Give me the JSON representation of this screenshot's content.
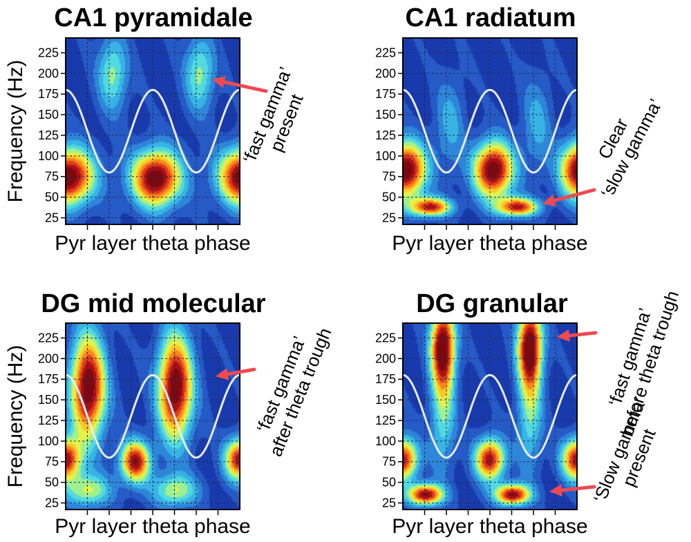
{
  "figure": {
    "y_axis_label": "Frequency (Hz)",
    "x_axis_label": "Pyr layer theta phase"
  },
  "colors": {
    "arrow": "#ee4a52",
    "theta_curve": "#e6ecf8",
    "grid": "#1e2a55",
    "frame": "#000000"
  },
  "colormap": [
    "#0d1f86",
    "#1b3fb3",
    "#2c68cf",
    "#31a3e0",
    "#43d6ee",
    "#9ff18f",
    "#f4f23a",
    "#ffb21e",
    "#f4521a",
    "#b4101a",
    "#7a0a10"
  ],
  "chart_data": [
    {
      "type": "heatmap",
      "panel": "top-left",
      "title": "CA1 pyramidale",
      "xlabel": "Pyr layer theta phase",
      "ylabel": "Frequency (Hz)",
      "ylim": [
        17,
        243
      ],
      "yticks": [
        25,
        50,
        75,
        100,
        125,
        150,
        175,
        200,
        225
      ],
      "theta_cycles": 2,
      "theta_curve_hz": [
        80,
        180
      ],
      "blobs": [
        {
          "phase": 0.02,
          "freq": 75,
          "sphase": 0.1,
          "sfreq": 24,
          "amp": 0.97
        },
        {
          "phase": 0.52,
          "freq": 73,
          "sphase": 0.1,
          "sfreq": 24,
          "amp": 0.97
        },
        {
          "phase": 1.02,
          "freq": 75,
          "sphase": 0.1,
          "sfreq": 24,
          "amp": 0.97
        },
        {
          "phase": 0.27,
          "freq": 200,
          "sphase": 0.06,
          "sfreq": 32,
          "amp": 0.4
        },
        {
          "phase": 0.77,
          "freq": 200,
          "sphase": 0.06,
          "sfreq": 32,
          "amp": 0.4
        }
      ],
      "annotations": [
        {
          "lines": [
            "‘fast gamma’",
            "present"
          ],
          "arrow_to_hz": 195
        }
      ]
    },
    {
      "type": "heatmap",
      "panel": "top-right",
      "title": "CA1 radiatum",
      "xlabel": "Pyr layer theta phase",
      "ylabel": "",
      "ylim": [
        17,
        243
      ],
      "yticks": [
        25,
        50,
        75,
        100,
        125,
        150,
        175,
        200,
        225
      ],
      "theta_cycles": 2,
      "theta_curve_hz": [
        80,
        180
      ],
      "blobs": [
        {
          "phase": 0.02,
          "freq": 83,
          "sphase": 0.08,
          "sfreq": 24,
          "amp": 0.97
        },
        {
          "phase": 0.52,
          "freq": 83,
          "sphase": 0.08,
          "sfreq": 24,
          "amp": 0.97
        },
        {
          "phase": 1.02,
          "freq": 83,
          "sphase": 0.08,
          "sfreq": 24,
          "amp": 0.97
        },
        {
          "phase": 0.16,
          "freq": 38,
          "sphase": 0.08,
          "sfreq": 8,
          "amp": 0.8
        },
        {
          "phase": 0.66,
          "freq": 38,
          "sphase": 0.08,
          "sfreq": 8,
          "amp": 0.8
        },
        {
          "phase": 0.27,
          "freq": 140,
          "sphase": 0.06,
          "sfreq": 40,
          "amp": 0.22
        },
        {
          "phase": 0.77,
          "freq": 140,
          "sphase": 0.06,
          "sfreq": 40,
          "amp": 0.22
        }
      ],
      "annotations": [
        {
          "lines": [
            "Clear",
            "‘slow gamma’"
          ],
          "arrow_to_hz": 40
        }
      ]
    },
    {
      "type": "heatmap",
      "panel": "bottom-left",
      "title": "DG mid molecular",
      "xlabel": "Pyr layer theta phase",
      "ylabel": "Frequency (Hz)",
      "ylim": [
        17,
        243
      ],
      "yticks": [
        25,
        50,
        75,
        100,
        125,
        150,
        175,
        200,
        225
      ],
      "theta_cycles": 2,
      "theta_curve_hz": [
        80,
        180
      ],
      "blobs": [
        {
          "phase": 0.13,
          "freq": 165,
          "sphase": 0.07,
          "sfreq": 45,
          "amp": 0.97
        },
        {
          "phase": 0.63,
          "freq": 165,
          "sphase": 0.07,
          "sfreq": 45,
          "amp": 0.97
        },
        {
          "phase": 0.0,
          "freq": 78,
          "sphase": 0.06,
          "sfreq": 18,
          "amp": 0.85
        },
        {
          "phase": 0.4,
          "freq": 75,
          "sphase": 0.06,
          "sfreq": 18,
          "amp": 0.85
        },
        {
          "phase": 1.0,
          "freq": 78,
          "sphase": 0.06,
          "sfreq": 18,
          "amp": 0.85
        },
        {
          "phase": 0.13,
          "freq": 40,
          "sphase": 0.09,
          "sfreq": 14,
          "amp": 0.45
        },
        {
          "phase": 0.63,
          "freq": 40,
          "sphase": 0.09,
          "sfreq": 14,
          "amp": 0.45
        }
      ],
      "annotations": [
        {
          "lines": [
            "‘fast gamma’",
            "after theta trough"
          ],
          "arrow_to_hz": 175
        }
      ]
    },
    {
      "type": "heatmap",
      "panel": "bottom-right",
      "title": "DG granular",
      "xlabel": "Pyr layer theta phase",
      "ylabel": "",
      "ylim": [
        17,
        243
      ],
      "yticks": [
        25,
        50,
        75,
        100,
        125,
        150,
        175,
        200,
        225
      ],
      "theta_cycles": 2,
      "theta_curve_hz": [
        80,
        180
      ],
      "blobs": [
        {
          "phase": 0.23,
          "freq": 215,
          "sphase": 0.05,
          "sfreq": 35,
          "amp": 0.97
        },
        {
          "phase": 0.73,
          "freq": 215,
          "sphase": 0.05,
          "sfreq": 35,
          "amp": 0.97
        },
        {
          "phase": 0.0,
          "freq": 78,
          "sphase": 0.06,
          "sfreq": 18,
          "amp": 0.85
        },
        {
          "phase": 0.5,
          "freq": 78,
          "sphase": 0.06,
          "sfreq": 18,
          "amp": 0.85
        },
        {
          "phase": 1.0,
          "freq": 78,
          "sphase": 0.06,
          "sfreq": 18,
          "amp": 0.85
        },
        {
          "phase": 0.13,
          "freq": 35,
          "sphase": 0.07,
          "sfreq": 9,
          "amp": 0.9
        },
        {
          "phase": 0.63,
          "freq": 35,
          "sphase": 0.07,
          "sfreq": 9,
          "amp": 0.9
        },
        {
          "phase": 0.23,
          "freq": 130,
          "sphase": 0.05,
          "sfreq": 45,
          "amp": 0.35
        },
        {
          "phase": 0.73,
          "freq": 130,
          "sphase": 0.05,
          "sfreq": 45,
          "amp": 0.35
        }
      ],
      "annotations": [
        {
          "lines": [
            "‘fast gamma’",
            "before theta trough"
          ],
          "arrow_to_hz": 225
        },
        {
          "lines": [
            "‘Slow gamma’",
            "present"
          ],
          "arrow_to_hz": 38
        }
      ]
    }
  ]
}
